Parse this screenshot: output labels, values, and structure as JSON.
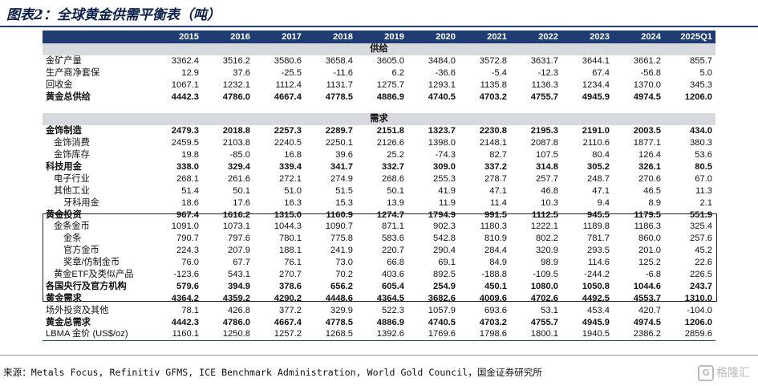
{
  "title": "图表2：全球黄金供需平衡表（吨）",
  "columns": [
    "",
    "2015",
    "2016",
    "2017",
    "2018",
    "2019",
    "2020",
    "2021",
    "2022",
    "2023",
    "2024",
    "2025Q1"
  ],
  "sections": {
    "supply": "供给",
    "demand": "需求"
  },
  "supply_rows": [
    {
      "label": "金矿产量",
      "indent": 0,
      "bold": false,
      "values": [
        "3362.4",
        "3516.2",
        "3580.6",
        "3658.4",
        "3605.0",
        "3484.0",
        "3572.8",
        "3631.7",
        "3644.1",
        "3661.2",
        "855.7"
      ]
    },
    {
      "label": "生产商净套保",
      "indent": 0,
      "bold": false,
      "values": [
        "12.9",
        "37.6",
        "-25.5",
        "-11.6",
        "6.2",
        "-36.6",
        "-5.4",
        "-12.3",
        "67.4",
        "-56.8",
        "5.0"
      ]
    },
    {
      "label": "回收金",
      "indent": 0,
      "bold": false,
      "values": [
        "1067.1",
        "1232.1",
        "1112.4",
        "1131.7",
        "1275.7",
        "1293.1",
        "1135.8",
        "1136.3",
        "1234.4",
        "1370.0",
        "345.3"
      ]
    },
    {
      "label": "黄金总供给",
      "indent": 0,
      "bold": true,
      "values": [
        "4442.3",
        "4786.0",
        "4667.4",
        "4778.5",
        "4886.9",
        "4740.5",
        "4703.2",
        "4755.7",
        "4945.9",
        "4974.5",
        "1206.0"
      ]
    }
  ],
  "demand_rows": [
    {
      "label": "金饰制造",
      "indent": 0,
      "bold": true,
      "values": [
        "2479.3",
        "2018.8",
        "2257.3",
        "2289.7",
        "2151.8",
        "1323.7",
        "2230.8",
        "2195.3",
        "2191.0",
        "2003.5",
        "434.0"
      ]
    },
    {
      "label": "金饰消费",
      "indent": 1,
      "bold": false,
      "values": [
        "2459.5",
        "2103.8",
        "2240.5",
        "2250.1",
        "2126.6",
        "1398.0",
        "2148.1",
        "2087.8",
        "2110.6",
        "1877.1",
        "380.3"
      ]
    },
    {
      "label": "金饰库存",
      "indent": 1,
      "bold": false,
      "values": [
        "19.8",
        "-85.0",
        "16.8",
        "39.6",
        "25.2",
        "-74.3",
        "82.7",
        "107.5",
        "80.4",
        "126.4",
        "53.6"
      ]
    },
    {
      "label": "科技用金",
      "indent": 0,
      "bold": true,
      "values": [
        "338.0",
        "329.4",
        "339.4",
        "341.7",
        "332.7",
        "309.0",
        "337.2",
        "314.8",
        "305.2",
        "326.1",
        "80.5"
      ]
    },
    {
      "label": "电子行业",
      "indent": 1,
      "bold": false,
      "values": [
        "268.1",
        "261.6",
        "272.1",
        "274.9",
        "268.6",
        "255.3",
        "278.7",
        "257.7",
        "248.7",
        "270.6",
        "67.0"
      ]
    },
    {
      "label": "其他工业",
      "indent": 1,
      "bold": false,
      "values": [
        "51.4",
        "50.1",
        "51.0",
        "51.5",
        "50.1",
        "41.9",
        "47.1",
        "46.8",
        "47.1",
        "46.5",
        "11.3"
      ]
    },
    {
      "label": "牙科用金",
      "indent": 2,
      "bold": false,
      "values": [
        "18.6",
        "17.6",
        "16.3",
        "15.3",
        "13.9",
        "11.9",
        "11.4",
        "10.3",
        "9.4",
        "8.9",
        "2.1"
      ]
    },
    {
      "label": "黄金投资",
      "indent": 0,
      "bold": true,
      "values": [
        "967.4",
        "1616.2",
        "1315.0",
        "1160.9",
        "1274.7",
        "1794.9",
        "991.5",
        "1112.5",
        "945.5",
        "1179.5",
        "551.9"
      ]
    },
    {
      "label": "金条金币",
      "indent": 1,
      "bold": false,
      "values": [
        "1091.0",
        "1073.1",
        "1044.3",
        "1090.7",
        "871.1",
        "902.3",
        "1180.3",
        "1222.1",
        "1189.8",
        "1186.3",
        "325.4"
      ]
    },
    {
      "label": "金条",
      "indent": 2,
      "bold": false,
      "values": [
        "790.7",
        "797.6",
        "780.1",
        "775.8",
        "583.6",
        "542.8",
        "810.9",
        "802.2",
        "781.7",
        "860.0",
        "257.6"
      ]
    },
    {
      "label": "官方金币",
      "indent": 2,
      "bold": false,
      "values": [
        "224.3",
        "207.9",
        "188.1",
        "241.9",
        "220.7",
        "290.4",
        "284.4",
        "320.9",
        "293.5",
        "201.0",
        "45.2"
      ]
    },
    {
      "label": "奖章/仿制金币",
      "indent": 2,
      "bold": false,
      "values": [
        "76.0",
        "67.7",
        "76.1",
        "73.0",
        "66.8",
        "69.1",
        "84.9",
        "98.9",
        "114.6",
        "125.2",
        "22.6"
      ]
    },
    {
      "label": "黄金ETF及类似产品",
      "indent": 1,
      "bold": false,
      "values": [
        "-123.6",
        "543.1",
        "270.7",
        "70.2",
        "403.6",
        "892.5",
        "-188.8",
        "-109.5",
        "-244.2",
        "-6.8",
        "226.5"
      ]
    },
    {
      "label": "各国央行及官方机构",
      "indent": 0,
      "bold": true,
      "values": [
        "579.6",
        "394.9",
        "378.6",
        "656.2",
        "605.4",
        "254.9",
        "450.1",
        "1080.0",
        "1050.8",
        "1044.6",
        "243.7"
      ]
    },
    {
      "label": "黄金需求",
      "indent": 0,
      "bold": true,
      "values": [
        "4364.2",
        "4359.2",
        "4290.2",
        "4448.6",
        "4364.5",
        "3682.6",
        "4009.6",
        "4702.6",
        "4492.5",
        "4553.7",
        "1310.0"
      ]
    },
    {
      "label": "场外投资及其他",
      "indent": 0,
      "bold": false,
      "values": [
        "78.1",
        "426.8",
        "377.2",
        "329.9",
        "522.3",
        "1057.9",
        "693.6",
        "53.1",
        "453.4",
        "420.7",
        "-104.0"
      ]
    },
    {
      "label": "黄金总需求",
      "indent": 0,
      "bold": true,
      "values": [
        "4442.3",
        "4786.0",
        "4667.4",
        "4778.5",
        "4886.9",
        "4740.5",
        "4703.2",
        "4755.7",
        "4945.9",
        "4974.5",
        "1206.0"
      ]
    },
    {
      "label": "LBMA 金价 (US$/oz)",
      "indent": 0,
      "bold": false,
      "values": [
        "1160.1",
        "1250.8",
        "1257.2",
        "1268.5",
        "1392.6",
        "1769.6",
        "1798.6",
        "1800.1",
        "1940.5",
        "2386.2",
        "2859.6"
      ]
    }
  ],
  "source": "来源：Metals Focus, Refinitiv GFMS, ICE Benchmark Administration, World Gold Council，国金证券研究所",
  "watermark": "格隆汇"
}
